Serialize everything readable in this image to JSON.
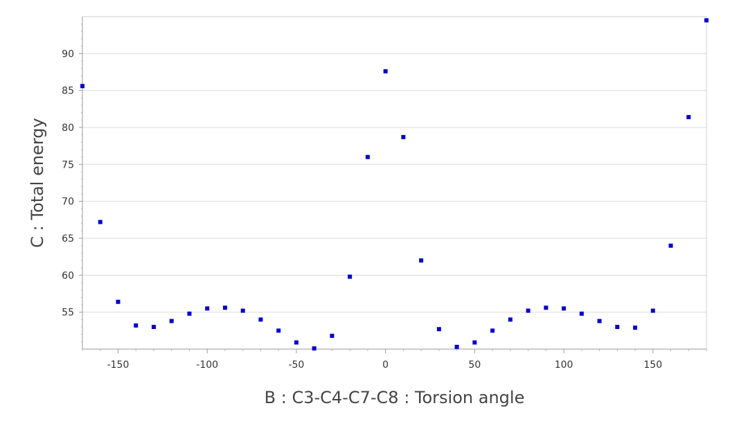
{
  "chart_data": {
    "type": "scatter",
    "xlabel": "B : C3-C4-C7-C8 : Torsion angle",
    "ylabel": "C : Total energy",
    "xlim": [
      -170,
      180
    ],
    "ylim": [
      50,
      95
    ],
    "xticks": [
      -150,
      -100,
      -50,
      0,
      50,
      100,
      150
    ],
    "yticks": [
      55,
      60,
      65,
      70,
      75,
      80,
      85,
      90
    ],
    "grid": "horizontal",
    "marker_color": "#0000cc",
    "gridline_color": "#dcdcdc",
    "series": [
      {
        "x": [
          -170,
          -160,
          -150,
          -140,
          -130,
          -120,
          -110,
          -100,
          -90,
          -80,
          -70,
          -60,
          -50,
          -40,
          -30,
          -20,
          -10,
          0,
          10,
          20,
          30,
          40,
          50,
          60,
          70,
          80,
          90,
          100,
          110,
          120,
          130,
          140,
          150,
          160,
          170,
          180
        ],
        "y": [
          85.6,
          67.2,
          56.4,
          53.2,
          53.0,
          53.8,
          54.8,
          55.5,
          55.6,
          55.2,
          54.0,
          52.5,
          50.9,
          50.1,
          51.8,
          59.8,
          76.0,
          87.6,
          78.7,
          62.0,
          52.7,
          50.3,
          50.9,
          52.5,
          54.0,
          55.2,
          55.6,
          55.5,
          54.8,
          53.8,
          53.0,
          52.9,
          55.2,
          64.0,
          81.4,
          94.5
        ]
      }
    ]
  }
}
